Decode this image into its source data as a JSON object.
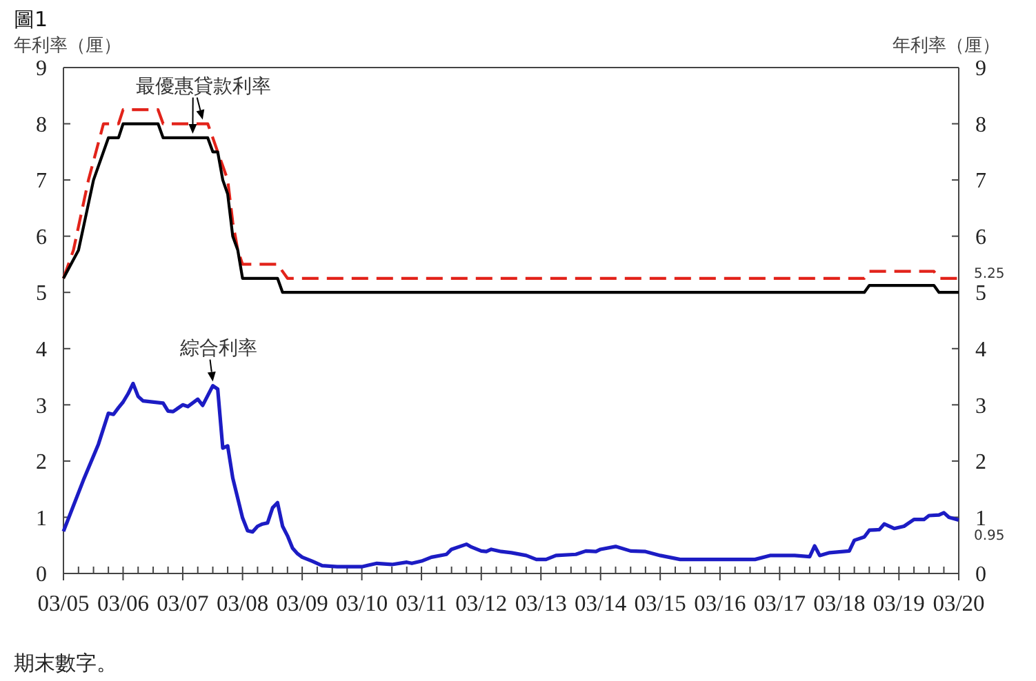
{
  "chart_data": {
    "type": "line",
    "title": "圖1",
    "ylabel": "年利率（厘）",
    "y2label": "年利率（厘）",
    "xlim": [
      "2005-03",
      "2020-03"
    ],
    "xticks": [
      {
        "value": "2005-03",
        "label": "03/05"
      },
      {
        "value": "2005-06",
        "label": null
      },
      {
        "value": "2005-09",
        "label": null
      },
      {
        "value": "2005-12",
        "label": null
      },
      {
        "value": "2006-03",
        "label": "03/06"
      },
      {
        "value": "2006-06",
        "label": null
      },
      {
        "value": "2006-09",
        "label": null
      },
      {
        "value": "2006-12",
        "label": null
      },
      {
        "value": "2007-03",
        "label": "03/07"
      },
      {
        "value": "2007-06",
        "label": null
      },
      {
        "value": "2007-09",
        "label": null
      },
      {
        "value": "2007-12",
        "label": null
      },
      {
        "value": "2008-03",
        "label": "03/08"
      },
      {
        "value": "2008-06",
        "label": null
      },
      {
        "value": "2008-09",
        "label": null
      },
      {
        "value": "2008-12",
        "label": null
      },
      {
        "value": "2009-03",
        "label": "03/09"
      },
      {
        "value": "2009-06",
        "label": null
      },
      {
        "value": "2009-09",
        "label": null
      },
      {
        "value": "2009-12",
        "label": null
      },
      {
        "value": "2010-03",
        "label": "03/10"
      },
      {
        "value": "2010-06",
        "label": null
      },
      {
        "value": "2010-09",
        "label": null
      },
      {
        "value": "2010-12",
        "label": null
      },
      {
        "value": "2011-03",
        "label": "03/11"
      },
      {
        "value": "2011-06",
        "label": null
      },
      {
        "value": "2011-09",
        "label": null
      },
      {
        "value": "2011-12",
        "label": null
      },
      {
        "value": "2012-03",
        "label": "03/12"
      },
      {
        "value": "2012-06",
        "label": null
      },
      {
        "value": "2012-09",
        "label": null
      },
      {
        "value": "2012-12",
        "label": null
      },
      {
        "value": "2013-03",
        "label": "03/13"
      },
      {
        "value": "2013-06",
        "label": null
      },
      {
        "value": "2013-09",
        "label": null
      },
      {
        "value": "2013-12",
        "label": null
      },
      {
        "value": "2014-03",
        "label": "03/14"
      },
      {
        "value": "2014-06",
        "label": null
      },
      {
        "value": "2014-09",
        "label": null
      },
      {
        "value": "2014-12",
        "label": null
      },
      {
        "value": "2015-03",
        "label": "03/15"
      },
      {
        "value": "2015-06",
        "label": null
      },
      {
        "value": "2015-09",
        "label": null
      },
      {
        "value": "2015-12",
        "label": null
      },
      {
        "value": "2016-03",
        "label": "03/16"
      },
      {
        "value": "2016-06",
        "label": null
      },
      {
        "value": "2016-09",
        "label": null
      },
      {
        "value": "2016-12",
        "label": null
      },
      {
        "value": "2017-03",
        "label": "03/17"
      },
      {
        "value": "2017-06",
        "label": null
      },
      {
        "value": "2017-09",
        "label": null
      },
      {
        "value": "2017-12",
        "label": null
      },
      {
        "value": "2018-03",
        "label": "03/18"
      },
      {
        "value": "2018-06",
        "label": null
      },
      {
        "value": "2018-09",
        "label": null
      },
      {
        "value": "2018-12",
        "label": null
      },
      {
        "value": "2019-03",
        "label": "03/19"
      },
      {
        "value": "2019-06",
        "label": null
      },
      {
        "value": "2019-09",
        "label": null
      },
      {
        "value": "2019-12",
        "label": null
      },
      {
        "value": "2020-03",
        "label": "03/20"
      }
    ],
    "ylim": [
      0,
      9
    ],
    "yticks": [
      0,
      1,
      2,
      3,
      4,
      5,
      6,
      7,
      8,
      9
    ],
    "y2lim": [
      0,
      9
    ],
    "y2ticks": [
      0,
      1,
      2,
      3,
      4,
      5,
      6,
      7,
      8,
      9
    ],
    "series": [
      {
        "color": "#e2231a",
        "line_style": "dashed",
        "x": [
          "2005-03",
          "2005-05",
          "2005-08",
          "2005-11",
          "2006-02",
          "2006-03",
          "2006-10",
          "2006-11",
          "2007-08",
          "2007-09",
          "2007-10",
          "2007-11",
          "2007-12",
          "2008-01",
          "2008-02",
          "2008-03",
          "2008-10",
          "2008-12",
          "2018-08",
          "2018-09",
          "2019-10",
          "2019-11",
          "2020-03"
        ],
        "values": [
          5.25,
          5.75,
          7.0,
          8.0,
          8.0,
          8.25,
          8.25,
          8.0,
          8.0,
          7.75,
          7.5,
          7.25,
          7.0,
          6.25,
          5.75,
          5.5,
          5.5,
          5.25,
          5.25,
          5.375,
          5.375,
          5.25,
          5.25
        ],
        "value_labels": [
          null,
          null,
          null,
          null,
          null,
          null,
          null,
          null,
          null,
          null,
          null,
          null,
          null,
          null,
          null,
          null,
          null,
          null,
          null,
          null,
          null,
          null,
          "5.25"
        ]
      },
      {
        "color": "#000000",
        "line_style": "solid",
        "x": [
          "2005-03",
          "2005-06",
          "2005-09",
          "2005-12",
          "2006-02",
          "2006-03",
          "2006-10",
          "2006-11",
          "2007-08",
          "2007-09",
          "2007-10",
          "2007-11",
          "2007-12",
          "2008-01",
          "2008-02",
          "2008-03",
          "2008-10",
          "2008-11",
          "2018-08",
          "2018-09",
          "2019-10",
          "2019-11",
          "2020-03"
        ],
        "values": [
          5.25,
          5.75,
          7.0,
          7.75,
          7.75,
          8.0,
          8.0,
          7.75,
          7.75,
          7.5,
          7.5,
          7.0,
          6.75,
          6.0,
          5.75,
          5.25,
          5.25,
          5.0,
          5.0,
          5.125,
          5.125,
          5.0,
          5.0
        ]
      },
      {
        "color": "#1c1cc4",
        "line_style": "solid",
        "x": [
          "2005-03",
          "2005-07",
          "2005-10",
          "2005-12",
          "2006-01",
          "2006-02",
          "2006-03",
          "2006-04",
          "2006-05",
          "2006-06",
          "2006-07",
          "2006-11",
          "2006-12",
          "2007-01",
          "2007-03",
          "2007-04",
          "2007-06",
          "2007-07",
          "2007-09",
          "2007-10",
          "2007-11",
          "2007-12",
          "2008-01",
          "2008-03",
          "2008-04",
          "2008-05",
          "2008-06",
          "2008-07",
          "2008-08",
          "2008-09",
          "2008-10",
          "2008-11",
          "2008-12",
          "2009-01",
          "2009-02",
          "2009-03",
          "2009-05",
          "2009-07",
          "2009-10",
          "2010-03",
          "2010-04",
          "2010-06",
          "2010-09",
          "2010-12",
          "2011-01",
          "2011-03",
          "2011-05",
          "2011-08",
          "2011-09",
          "2011-12",
          "2012-01",
          "2012-03",
          "2012-04",
          "2012-05",
          "2012-07",
          "2012-09",
          "2012-12",
          "2013-02",
          "2013-04",
          "2013-06",
          "2013-10",
          "2013-12",
          "2014-02",
          "2014-03",
          "2014-06",
          "2014-09",
          "2014-12",
          "2015-03",
          "2015-07",
          "2015-12",
          "2016-07",
          "2016-10",
          "2017-01",
          "2017-06",
          "2017-09",
          "2017-10",
          "2017-11",
          "2018-01",
          "2018-05",
          "2018-06",
          "2018-08",
          "2018-09",
          "2018-11",
          "2018-12",
          "2019-02",
          "2019-04",
          "2019-06",
          "2019-08",
          "2019-09",
          "2019-11",
          "2019-12",
          "2020-01",
          "2020-03"
        ],
        "values": [
          0.75,
          1.66,
          2.3,
          2.85,
          2.83,
          2.95,
          3.05,
          3.2,
          3.38,
          3.15,
          3.07,
          3.03,
          2.89,
          2.88,
          3.0,
          2.97,
          3.1,
          2.99,
          3.34,
          3.28,
          2.23,
          2.27,
          1.7,
          0.99,
          0.76,
          0.74,
          0.84,
          0.88,
          0.9,
          1.17,
          1.26,
          0.84,
          0.67,
          0.45,
          0.35,
          0.29,
          0.22,
          0.14,
          0.12,
          0.12,
          0.14,
          0.18,
          0.16,
          0.2,
          0.18,
          0.22,
          0.29,
          0.34,
          0.43,
          0.52,
          0.47,
          0.4,
          0.39,
          0.43,
          0.39,
          0.37,
          0.32,
          0.25,
          0.25,
          0.32,
          0.34,
          0.4,
          0.39,
          0.43,
          0.48,
          0.4,
          0.39,
          0.32,
          0.25,
          0.25,
          0.25,
          0.25,
          0.32,
          0.32,
          0.3,
          0.49,
          0.32,
          0.37,
          0.4,
          0.59,
          0.65,
          0.77,
          0.78,
          0.88,
          0.8,
          0.84,
          0.96,
          0.96,
          1.03,
          1.04,
          1.08,
          1.0,
          0.95
        ],
        "value_labels": [
          null,
          null,
          null,
          null,
          null,
          null,
          null,
          null,
          null,
          null,
          null,
          null,
          null,
          null,
          null,
          null,
          null,
          null,
          null,
          null,
          null,
          null,
          null,
          null,
          null,
          null,
          null,
          null,
          null,
          null,
          null,
          null,
          null,
          null,
          null,
          null,
          null,
          null,
          null,
          null,
          null,
          null,
          null,
          null,
          null,
          null,
          null,
          null,
          null,
          null,
          null,
          null,
          null,
          null,
          null,
          null,
          null,
          null,
          null,
          null,
          null,
          null,
          null,
          null,
          null,
          null,
          null,
          null,
          null,
          null,
          null,
          null,
          null,
          null,
          null,
          null,
          null,
          null,
          null,
          null,
          null,
          null,
          null,
          null,
          null,
          null,
          null,
          null,
          null,
          null,
          null,
          null,
          "0.95"
        ]
      }
    ],
    "annotations": [
      {
        "text": "最優惠貸款利率",
        "x": "2007-06",
        "y": 8.0
      },
      {
        "text": "綜合利率",
        "x": "2007-09",
        "y": 3.34
      },
      "期末數字。"
    ]
  }
}
